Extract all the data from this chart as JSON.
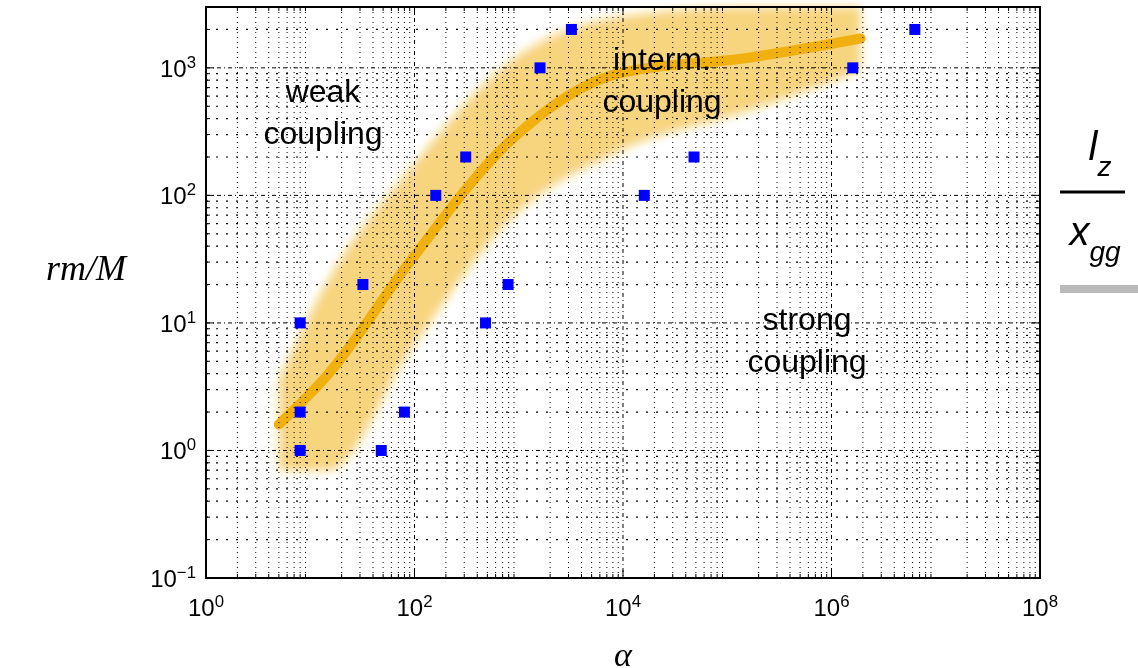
{
  "chart_data": {
    "type": "scatter",
    "xlabel": "α",
    "ylabel": "rm/M",
    "log": "xy",
    "grid": true,
    "xlim": [
      1,
      100000000
    ],
    "ylim": [
      0.1,
      3000
    ],
    "xticks": [
      {
        "value": 1,
        "label": "10$^{0}$"
      },
      {
        "value": 100,
        "label": "10$^{2}$"
      },
      {
        "value": 10000,
        "label": "10$^{4}$"
      },
      {
        "value": 1000000,
        "label": "10$^{6}$"
      },
      {
        "value": 100000000,
        "label": "10$^{8}$"
      }
    ],
    "yticks": [
      {
        "value": 0.1,
        "label": "10$^{−1}$"
      },
      {
        "value": 1,
        "label": "10$^{0}$"
      },
      {
        "value": 10,
        "label": "10$^{1}$"
      },
      {
        "value": 100,
        "label": "10$^{2}$"
      },
      {
        "value": 1000,
        "label": "10$^{3}$"
      }
    ],
    "series": [
      {
        "type": "line",
        "marker": "none",
        "color": "#f0b010",
        "x": [
          5,
          15,
          90,
          800,
          9000,
          160000,
          1900000
        ],
        "values": [
          1.6,
          4,
          30,
          260,
          900,
          1200,
          1700
        ],
        "lower": [
          0.7,
          0.7,
          6,
          63,
          220,
          460,
          950
        ],
        "upper": [
          3.6,
          22,
          160,
          1100,
          2500,
          3000,
          3000
        ]
      },
      {
        "marker": "square",
        "color": "#0000ff",
        "x": [
          8,
          8,
          8,
          32,
          48,
          80,
          160,
          310,
          480,
          790,
          1600,
          3200,
          16000,
          48000,
          1600000,
          6300000
        ],
        "values": [
          1,
          2,
          10,
          20,
          1,
          2,
          100,
          200,
          10,
          20,
          1000,
          2000,
          100,
          200,
          1000,
          2000
        ]
      }
    ],
    "annotations": [
      "weak\ncoupling",
      "interm.\ncoupling",
      "strong\ncoupling",
      "l$_{z}$",
      "x$_{gg}$"
    ]
  }
}
